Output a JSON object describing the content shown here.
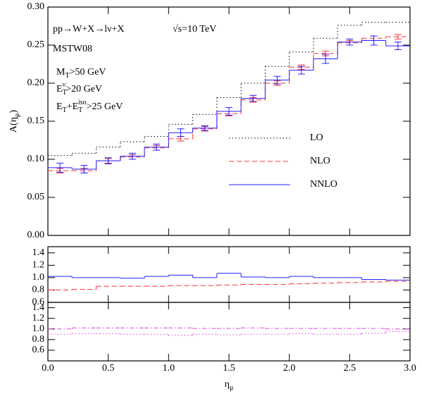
{
  "chart_data": [
    {
      "type": "histogram",
      "ylabel": [
        {
          "t": "A(η"
        },
        {
          "sub": "μ"
        },
        {
          "t": ")"
        }
      ],
      "annotations": [
        [
          {
            "t": "pp→W+X→lν+X"
          }
        ],
        [
          {
            "t": "√s=10 TeV"
          }
        ],
        [
          {
            "t": "MSTW08"
          }
        ],
        [
          {
            "t": "M"
          },
          {
            "sub": "T"
          },
          {
            "t": ">50 GeV"
          }
        ],
        [
          {
            "t": "E"
          },
          {
            "sub": "T"
          },
          {
            "sup": "ν"
          },
          {
            "t": ">20 GeV"
          }
        ],
        [
          {
            "t": "E"
          },
          {
            "sub": "T"
          },
          {
            "t": "+E"
          },
          {
            "sub": "T"
          },
          {
            "sup": "iso"
          },
          {
            "t": ">25 GeV"
          }
        ]
      ],
      "bins": [
        0,
        0.2,
        0.4,
        0.6,
        0.8,
        1.0,
        1.2,
        1.4,
        1.6,
        1.8,
        2.0,
        2.2,
        2.4,
        2.6,
        2.8,
        3.0
      ],
      "series": [
        {
          "name": "LO",
          "color": "#000000",
          "style": "dotted",
          "values": [
            0.105,
            0.108,
            0.116,
            0.123,
            0.13,
            0.146,
            0.159,
            0.181,
            0.2,
            0.222,
            0.241,
            0.259,
            0.276,
            0.28,
            0.28
          ]
        },
        {
          "name": "NLO",
          "color": "#ff3030",
          "style": "dashed",
          "values": [
            0.085,
            0.085,
            0.098,
            0.103,
            0.115,
            0.127,
            0.14,
            0.16,
            0.178,
            0.2,
            0.221,
            0.239,
            0.253,
            0.259,
            0.261
          ],
          "errors": [
            0.003,
            0.003,
            0.003,
            0.003,
            0.003,
            0.003,
            0.003,
            0.003,
            0.003,
            0.003,
            0.003,
            0.003,
            0.003,
            0.003,
            0.003
          ]
        },
        {
          "name": "NNLO",
          "color": "#2020ff",
          "style": "solid",
          "values": [
            0.089,
            0.087,
            0.098,
            0.104,
            0.116,
            0.135,
            0.141,
            0.163,
            0.18,
            0.204,
            0.217,
            0.232,
            0.254,
            0.256,
            0.249
          ],
          "errors": [
            0.006,
            0.005,
            0.004,
            0.004,
            0.004,
            0.005,
            0.003,
            0.005,
            0.004,
            0.005,
            0.005,
            0.006,
            0.004,
            0.006,
            0.005
          ]
        }
      ],
      "legend": "center-right",
      "xlim": [
        0,
        3
      ],
      "xticks": [
        0,
        0.5,
        1,
        1.5,
        2,
        2.5,
        3
      ],
      "ylim": [
        0,
        0.3
      ],
      "yticks": [
        {
          "value": 0,
          "label": "0.00"
        },
        {
          "value": 0.05,
          "label": "0.05"
        },
        {
          "value": 0.1,
          "label": "0.10"
        },
        {
          "value": 0.15,
          "label": "0.15"
        },
        {
          "value": 0.2,
          "label": "0.20"
        },
        {
          "value": 0.25,
          "label": "0.25"
        },
        {
          "value": 0.3,
          "label": "0.30"
        }
      ]
    },
    {
      "type": "histogram",
      "bins": [
        0,
        0.2,
        0.4,
        0.6,
        0.8,
        1.0,
        1.2,
        1.4,
        1.6,
        1.8,
        2.0,
        2.2,
        2.4,
        2.6,
        2.8,
        3.0
      ],
      "series": [
        {
          "color": "#2020ff",
          "style": "solid",
          "values": [
            1.02,
            1.0,
            1.0,
            0.99,
            1.02,
            1.04,
            1.0,
            1.07,
            1.01,
            1.0,
            1.02,
            1.0,
            1.0,
            0.97,
            0.96
          ]
        },
        {
          "color": "#ff3030",
          "style": "dashed",
          "values": [
            0.8,
            0.81,
            0.86,
            0.86,
            0.86,
            0.87,
            0.87,
            0.88,
            0.89,
            0.89,
            0.9,
            0.91,
            0.92,
            0.93,
            0.94
          ]
        }
      ],
      "xlim": [
        0,
        3
      ],
      "xticks": [
        0,
        0.5,
        1,
        1.5,
        2,
        2.5,
        3
      ],
      "ylim": [
        0.6,
        1.5
      ],
      "yticks": [
        {
          "value": 0.6,
          "label": "0.6"
        },
        {
          "value": 0.8,
          "label": "0.8"
        },
        {
          "value": 1,
          "label": "1.0"
        },
        {
          "value": 1.2,
          "label": "1.2"
        },
        {
          "value": 1.4,
          "label": "1.4"
        }
      ]
    },
    {
      "type": "histogram",
      "bins": [
        0,
        0.2,
        0.4,
        0.6,
        0.8,
        1.0,
        1.2,
        1.4,
        1.6,
        1.8,
        2.0,
        2.2,
        2.4,
        2.6,
        2.8,
        3.0
      ],
      "series": [
        {
          "color": "#e040e0",
          "style": "dashdot",
          "values": [
            1.0,
            1.02,
            1.02,
            1.02,
            1.02,
            1.02,
            1.01,
            1.01,
            1.02,
            1.01,
            1.01,
            1.01,
            1.01,
            1.01,
            1.0
          ]
        },
        {
          "color": "#e040e0",
          "style": "dotted",
          "values": [
            0.9,
            0.91,
            0.91,
            0.9,
            0.9,
            0.88,
            0.9,
            0.89,
            0.9,
            0.9,
            0.91,
            0.9,
            0.9,
            0.92,
            0.95
          ]
        }
      ],
      "xlabel": [
        {
          "t": "η"
        },
        {
          "sub": "μ"
        }
      ],
      "xlim": [
        0,
        3
      ],
      "xticks": [
        {
          "value": 0,
          "label": "0.0"
        },
        {
          "value": 0.5,
          "label": "0.5"
        },
        {
          "value": 1,
          "label": "1.0"
        },
        {
          "value": 1.5,
          "label": "1.5"
        },
        {
          "value": 2,
          "label": "2.0"
        },
        {
          "value": 2.5,
          "label": "2.5"
        },
        {
          "value": 3,
          "label": "3.0"
        }
      ],
      "ylim": [
        0.4,
        1.5
      ],
      "yticks": [
        {
          "value": 0.6,
          "label": "0.6"
        },
        {
          "value": 0.8,
          "label": "0.8"
        },
        {
          "value": 1,
          "label": "1.0"
        },
        {
          "value": 1.2,
          "label": "1.2"
        },
        {
          "value": 1.4,
          "label": "1.4"
        }
      ]
    }
  ]
}
